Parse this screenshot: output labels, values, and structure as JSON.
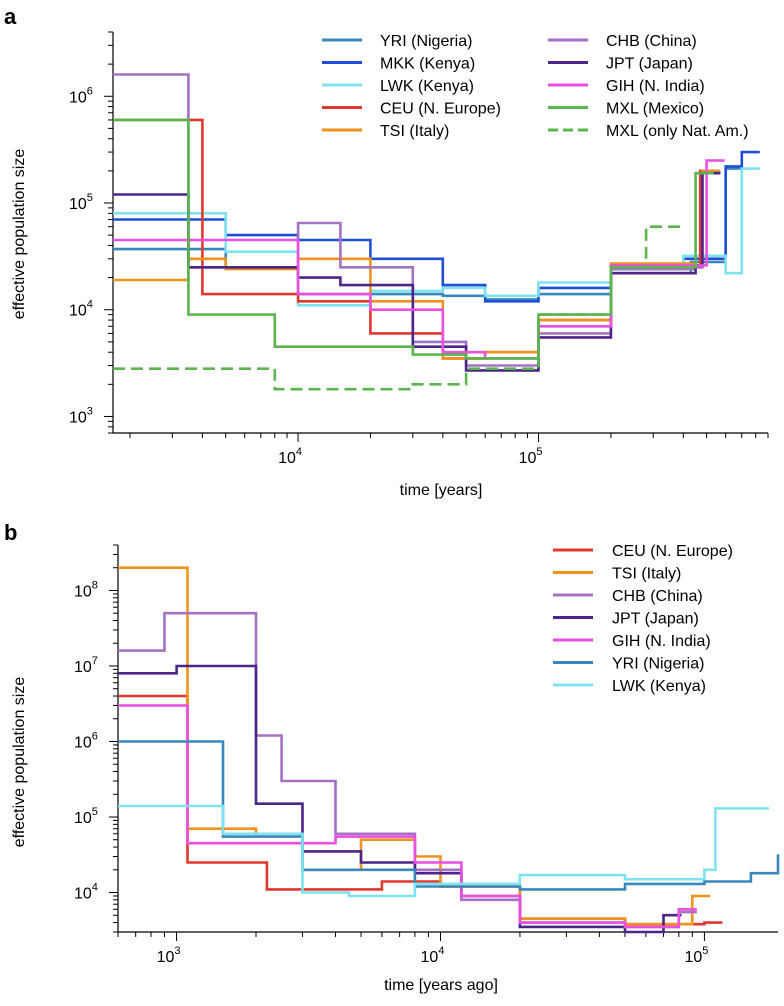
{
  "chart_data": [
    {
      "type": "line",
      "panel": "a",
      "xlabel": "time [years]",
      "ylabel": "effective population size",
      "xscale": "log",
      "yscale": "log",
      "xlim": [
        1700,
        900000
      ],
      "ylim": [
        700,
        4000000
      ],
      "x_ticks": [
        {
          "base": "10",
          "exp": "4",
          "value": 10000
        },
        {
          "base": "10",
          "exp": "5",
          "value": 100000
        }
      ],
      "y_ticks": [
        {
          "base": "10",
          "exp": "3",
          "value": 1000
        },
        {
          "base": "10",
          "exp": "4",
          "value": 10000
        },
        {
          "base": "10",
          "exp": "5",
          "value": 100000
        },
        {
          "base": "10",
          "exp": "6",
          "value": 1000000
        }
      ],
      "legend_position": "top-right",
      "series": [
        {
          "name": "YRI (Nigeria)",
          "color": "#3a87bd",
          "dash": "solid",
          "x": [
            1700,
            5000,
            10000,
            20000,
            40000,
            60000,
            100000,
            200000,
            430000,
            600000
          ],
          "y": [
            37000,
            25000,
            14000,
            14000,
            13500,
            12500,
            14000,
            22000,
            28000,
            210000
          ]
        },
        {
          "name": "MKK (Kenya)",
          "color": "#1f4fd6",
          "dash": "solid",
          "x": [
            1700,
            5000,
            10000,
            20000,
            40000,
            60000,
            100000,
            200000,
            400000,
            600000,
            700000
          ],
          "y": [
            70000,
            50000,
            45000,
            30000,
            17000,
            12000,
            16000,
            24000,
            30000,
            220000,
            300000
          ]
        },
        {
          "name": "LWK (Kenya)",
          "color": "#7ee3ee",
          "dash": "solid",
          "x": [
            1700,
            5000,
            10000,
            20000,
            40000,
            60000,
            100000,
            200000,
            400000,
            600000,
            700000
          ],
          "y": [
            80000,
            35000,
            11000,
            15000,
            16000,
            13500,
            18000,
            25000,
            32000,
            22000,
            210000
          ]
        },
        {
          "name": "CEU (N. Europe)",
          "color": "#e0382e",
          "dash": "solid",
          "x": [
            1700,
            3500,
            4000,
            10000,
            20000,
            40000,
            60000,
            100000,
            200000,
            450000,
            470000
          ],
          "y": [
            600000,
            600000,
            14000,
            12000,
            6000,
            3500,
            4000,
            8000,
            27000,
            25000,
            200000
          ]
        },
        {
          "name": "TSI (Italy)",
          "color": "#f0921e",
          "dash": "solid",
          "x": [
            1700,
            3500,
            5000,
            10000,
            20000,
            40000,
            60000,
            100000,
            200000,
            450000,
            480000
          ],
          "y": [
            19000,
            30000,
            24000,
            30000,
            12000,
            3500,
            4000,
            8000,
            27000,
            25000,
            200000
          ]
        },
        {
          "name": "CHB (China)",
          "color": "#a472c4",
          "dash": "solid",
          "x": [
            1700,
            3500,
            10000,
            15000,
            30000,
            50000,
            100000,
            200000,
            450000,
            480000
          ],
          "y": [
            1600000,
            25000,
            65000,
            25000,
            5000,
            3000,
            6000,
            24000,
            25000,
            190000
          ]
        },
        {
          "name": "JPT (Japan)",
          "color": "#4b2587",
          "dash": "solid",
          "x": [
            1700,
            3500,
            10000,
            15000,
            30000,
            50000,
            100000,
            200000,
            450000,
            480000
          ],
          "y": [
            120000,
            25000,
            20000,
            17000,
            4500,
            2700,
            5500,
            22000,
            26000,
            190000
          ]
        },
        {
          "name": "GIH (N. India)",
          "color": "#ea4fe0",
          "dash": "solid",
          "x": [
            1700,
            3500,
            10000,
            20000,
            40000,
            60000,
            100000,
            200000,
            450000,
            500000
          ],
          "y": [
            45000,
            45000,
            14000,
            10000,
            4000,
            3500,
            7000,
            26000,
            26000,
            250000
          ]
        },
        {
          "name": "MXL (Mexico)",
          "color": "#5ab54f",
          "dash": "solid",
          "x": [
            1700,
            3500,
            8000,
            15000,
            30000,
            50000,
            100000,
            200000,
            420000,
            450000
          ],
          "y": [
            600000,
            9000,
            4500,
            4500,
            3800,
            3500,
            9000,
            25000,
            25000,
            190000
          ]
        },
        {
          "name": "MXL (only Nat. Am.)",
          "color": "#5ab54f",
          "dash": "dashed",
          "x": [
            1700,
            8000,
            15000,
            30000,
            50000,
            100000,
            200000,
            280000,
            330000
          ],
          "y": [
            2800,
            1800,
            1800,
            2000,
            2800,
            9000,
            25000,
            60000,
            60000
          ]
        }
      ]
    },
    {
      "type": "line",
      "panel": "b",
      "xlabel": "time [years ago]",
      "ylabel": "effective population size",
      "xscale": "log",
      "yscale": "log",
      "xlim": [
        600,
        190000
      ],
      "ylim": [
        3000,
        400000000
      ],
      "x_ticks": [
        {
          "base": "10",
          "exp": "3",
          "value": 1000
        },
        {
          "base": "10",
          "exp": "4",
          "value": 10000
        },
        {
          "base": "10",
          "exp": "5",
          "value": 100000
        }
      ],
      "y_ticks": [
        {
          "base": "10",
          "exp": "4",
          "value": 10000
        },
        {
          "base": "10",
          "exp": "5",
          "value": 100000
        },
        {
          "base": "10",
          "exp": "6",
          "value": 1000000
        },
        {
          "base": "10",
          "exp": "7",
          "value": 10000000
        },
        {
          "base": "10",
          "exp": "8",
          "value": 100000000
        }
      ],
      "legend_position": "top-right",
      "series": [
        {
          "name": "CEU (N. Europe)",
          "color": "#e0382e",
          "dash": "solid",
          "x": [
            600,
            1050,
            1100,
            2200,
            6000,
            10000,
            20000,
            50000,
            100000
          ],
          "y": [
            4000000,
            4000000,
            25000,
            11000,
            14000,
            12000,
            4500,
            3800,
            4000
          ]
        },
        {
          "name": "TSI (Italy)",
          "color": "#f0921e",
          "dash": "solid",
          "x": [
            600,
            1050,
            1100,
            2000,
            3000,
            5000,
            8000,
            10000,
            20000,
            50000,
            90000
          ],
          "y": [
            200000000,
            200000000,
            70000,
            60000,
            20000,
            50000,
            30000,
            12000,
            4500,
            3800,
            9000
          ]
        },
        {
          "name": "CHB (China)",
          "color": "#a472c4",
          "dash": "solid",
          "x": [
            600,
            900,
            1300,
            2000,
            2500,
            4000,
            8000,
            12000,
            20000,
            50000,
            80000
          ],
          "y": [
            16000000,
            50000000,
            50000000,
            1200000,
            300000,
            60000,
            20000,
            8000,
            4000,
            3500,
            5500
          ]
        },
        {
          "name": "JPT (Japan)",
          "color": "#4b2587",
          "dash": "solid",
          "x": [
            600,
            1000,
            2000,
            3000,
            5000,
            8000,
            12000,
            20000,
            50000,
            70000
          ],
          "y": [
            8000000,
            10000000,
            150000,
            35000,
            25000,
            18000,
            9000,
            3500,
            3000,
            5000
          ]
        },
        {
          "name": "GIH (N. India)",
          "color": "#ea4fe0",
          "dash": "solid",
          "x": [
            600,
            1000,
            1100,
            2200,
            4000,
            8000,
            12000,
            20000,
            50000,
            80000
          ],
          "y": [
            3000000,
            3000000,
            45000,
            45000,
            55000,
            25000,
            9000,
            4000,
            3500,
            6000
          ]
        },
        {
          "name": "YRI (Nigeria)",
          "color": "#3a87bd",
          "dash": "solid",
          "x": [
            600,
            1400,
            1500,
            3000,
            8000,
            20000,
            50000,
            100000,
            150000,
            190000
          ],
          "y": [
            1000000,
            1000000,
            55000,
            20000,
            12000,
            11000,
            13000,
            14000,
            18000,
            32000
          ]
        },
        {
          "name": "LWK (Kenya)",
          "color": "#7ee3ee",
          "dash": "solid",
          "x": [
            600,
            1400,
            1500,
            3000,
            4500,
            8000,
            20000,
            50000,
            100000,
            110000,
            150000
          ],
          "y": [
            140000,
            140000,
            60000,
            10000,
            9000,
            13000,
            17000,
            15000,
            20000,
            130000,
            130000
          ]
        }
      ]
    }
  ],
  "panels": [
    {
      "letter": "a",
      "ylabel": "effective population size",
      "xlabel": "time [years]",
      "x_ticks": [
        {
          "base": "10",
          "exp": "4"
        },
        {
          "base": "10",
          "exp": "5"
        }
      ],
      "y_ticks": [
        {
          "base": "10",
          "exp": "3"
        },
        {
          "base": "10",
          "exp": "4"
        },
        {
          "base": "10",
          "exp": "5"
        },
        {
          "base": "10",
          "exp": "6"
        }
      ],
      "legend": [
        "YRI (Nigeria)",
        "MKK (Kenya)",
        "LWK (Kenya)",
        "CEU (N. Europe)",
        "TSI (Italy)",
        "CHB (China)",
        "JPT (Japan)",
        "GIH (N. India)",
        "MXL (Mexico)",
        "MXL (only Nat. Am.)"
      ]
    },
    {
      "letter": "b",
      "ylabel": "effective population size",
      "xlabel": "time [years ago]",
      "x_ticks": [
        {
          "base": "10",
          "exp": "3"
        },
        {
          "base": "10",
          "exp": "4"
        },
        {
          "base": "10",
          "exp": "5"
        }
      ],
      "y_ticks": [
        {
          "base": "10",
          "exp": "4"
        },
        {
          "base": "10",
          "exp": "5"
        },
        {
          "base": "10",
          "exp": "6"
        },
        {
          "base": "10",
          "exp": "7"
        },
        {
          "base": "10",
          "exp": "8"
        }
      ],
      "legend": [
        "CEU (N. Europe)",
        "TSI (Italy)",
        "CHB (China)",
        "JPT (Japan)",
        "GIH (N. India)",
        "YRI (Nigeria)",
        "LWK (Kenya)"
      ]
    }
  ]
}
